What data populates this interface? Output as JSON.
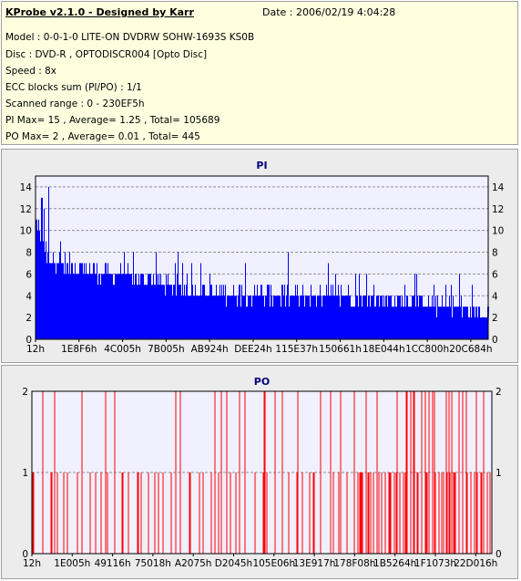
{
  "header": {
    "title": "KProbe v2.1.0 - Designed by Karr",
    "date": "Date : 2006/02/19 4:04:28",
    "lines": [
      "Model : 0-0-1-0 LITE-ON DVDRW SOHW-1693S KS0B",
      "Disc : DVD-R , OPTODISCR004 [Opto Disc]",
      "Speed : 8x",
      "ECC blocks sum (PI/PO) : 1/1",
      "Scanned range : 0 - 230EF5h",
      "PI Max= 15 , Average= 1.25 , Total= 105689",
      "PO Max= 2 , Average= 0.01 , Total= 445"
    ]
  },
  "colors": {
    "pi_fill": "#0000ff",
    "po_line": "#ff0000",
    "plot_bg": "#f0f0ff",
    "title": "#000080"
  },
  "chart_data": [
    {
      "type": "area",
      "title": "PI",
      "ylim": [
        0,
        15
      ],
      "y_ticks": [
        "0",
        "2",
        "4",
        "6",
        "8",
        "10",
        "12",
        "14"
      ],
      "x_ticks": [
        "12h",
        "1E8F6h",
        "4C005h",
        "7B005h",
        "AB924h",
        "DEE24h",
        "115E37h",
        "150661h",
        "18E044h",
        "1CC800h",
        "20C684h"
      ],
      "max": 15,
      "average": 1.25,
      "total": 105689,
      "profile_baseline": [
        [
          0,
          11
        ],
        [
          0.02,
          8
        ],
        [
          0.05,
          7
        ],
        [
          0.1,
          6.5
        ],
        [
          0.15,
          6
        ],
        [
          0.25,
          5.5
        ],
        [
          0.33,
          4.5
        ],
        [
          0.5,
          4
        ],
        [
          0.7,
          4
        ],
        [
          0.8,
          3.5
        ],
        [
          0.9,
          3
        ],
        [
          1,
          2.5
        ]
      ]
    },
    {
      "type": "bar",
      "title": "PO",
      "ylim": [
        0,
        2
      ],
      "y_ticks": [
        "0",
        "1",
        "2"
      ],
      "x_ticks": [
        "12h",
        "1E005h",
        "49116h",
        "75018h",
        "A2075h",
        "D2045h",
        "105E06h",
        "13E917h",
        "178F08h",
        "1B5264h",
        "1F1073h",
        "22D016h"
      ],
      "max": 2,
      "average": 0.01,
      "total": 445
    }
  ]
}
